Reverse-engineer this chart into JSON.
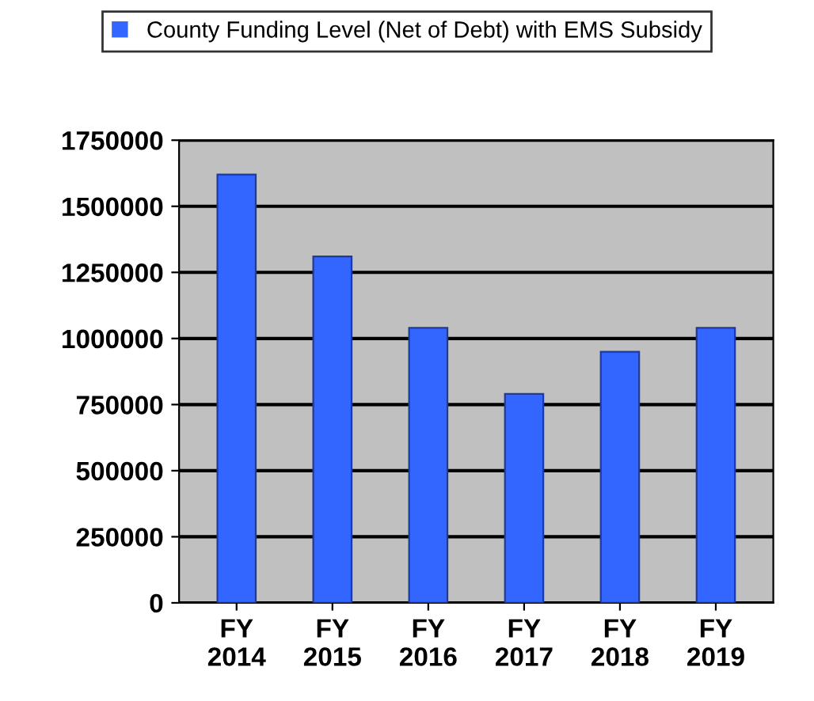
{
  "chart_data": {
    "type": "bar",
    "categories": [
      "FY\n2014",
      "FY\n2015",
      "FY\n2016",
      "FY\n2017",
      "FY\n2018",
      "FY\n2019"
    ],
    "series": [
      {
        "name": "County Funding Level (Net of Debt) with EMS Subsidy",
        "color": "#3366ff",
        "values": [
          1620000,
          1310000,
          1040000,
          790000,
          950000,
          1040000
        ]
      }
    ],
    "ylim": [
      0,
      1750000
    ],
    "yticks": [
      0,
      250000,
      500000,
      750000,
      1000000,
      1250000,
      1500000,
      1750000
    ],
    "grid": "y",
    "legend": "top"
  }
}
